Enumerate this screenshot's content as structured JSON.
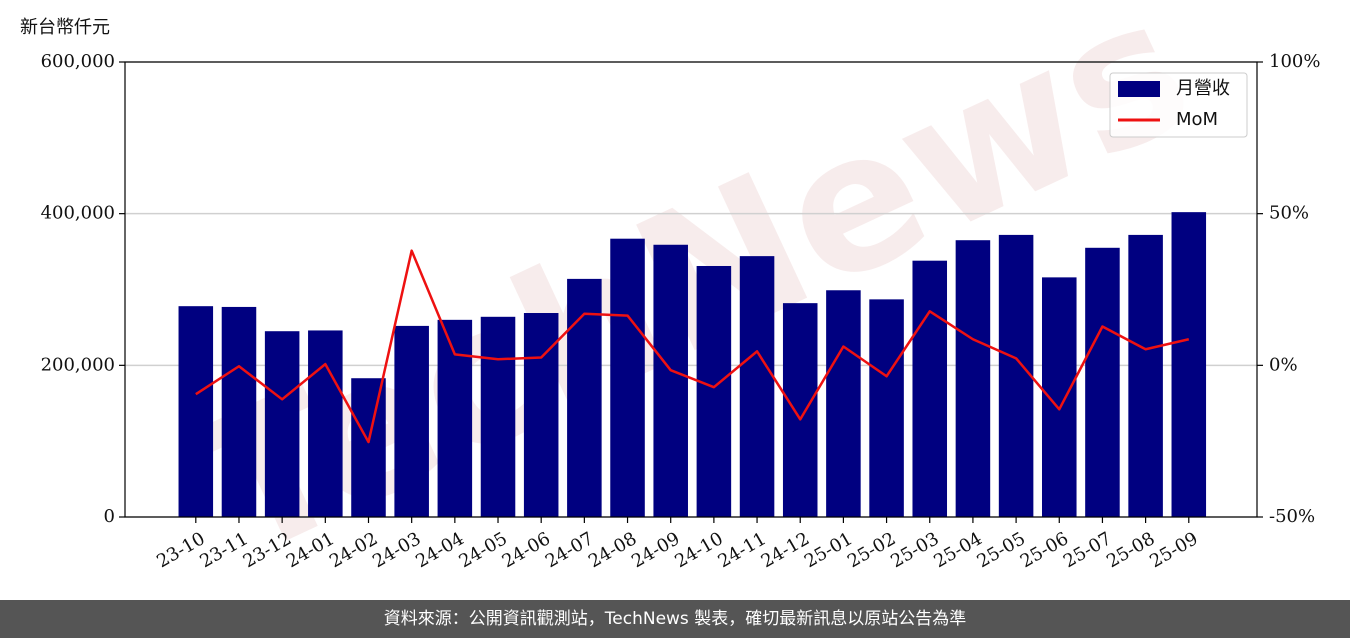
{
  "chart_data": {
    "type": "bar",
    "y_label": "新台幣仟元",
    "watermark": "TechNews",
    "footer": "資料來源：公開資訊觀測站，TechNews 製表，確切最新訊息以原站公告為準",
    "categories": [
      "23-10",
      "23-11",
      "23-12",
      "24-01",
      "24-02",
      "24-03",
      "24-04",
      "24-05",
      "24-06",
      "24-07",
      "24-08",
      "24-09",
      "24-10",
      "24-11",
      "24-12",
      "25-01",
      "25-02",
      "25-03",
      "25-04",
      "25-05",
      "25-06",
      "25-07",
      "25-08",
      "25-09"
    ],
    "series": [
      {
        "name": "月營收",
        "type": "bar",
        "color": "#000080",
        "values": [
          278000,
          277000,
          245000,
          246000,
          183000,
          252000,
          260000,
          264000,
          269000,
          314000,
          367000,
          359000,
          331000,
          344000,
          282000,
          299000,
          287000,
          338000,
          365000,
          372000,
          316000,
          355000,
          372000,
          402000
        ]
      },
      {
        "name": "MoM",
        "type": "line",
        "axis": "y2",
        "color": "#ee1111",
        "values": [
          -9.5,
          -0.3,
          -11.2,
          0.4,
          -25.3,
          37.8,
          3.6,
          2.0,
          2.6,
          17.0,
          16.4,
          -1.6,
          -7.2,
          4.6,
          -17.8,
          6.2,
          -3.6,
          17.8,
          8.6,
          2.3,
          -14.5,
          12.8,
          5.3,
          8.6
        ]
      }
    ],
    "ylim": [
      0,
      600000
    ],
    "yticks": [
      0,
      {
        "value": 200000,
        "label": "200,000"
      },
      {
        "value": 400000,
        "label": "400,000"
      },
      {
        "value": 600000,
        "label": "600,000"
      }
    ],
    "y2lim": [
      -50,
      100
    ],
    "y2ticks": [
      {
        "value": -50,
        "label": "-50%"
      },
      {
        "value": 0,
        "label": "0%"
      },
      {
        "value": 50,
        "label": "50%"
      },
      {
        "value": 100,
        "label": "100%"
      }
    ],
    "grid": true,
    "legend": "upper right"
  }
}
